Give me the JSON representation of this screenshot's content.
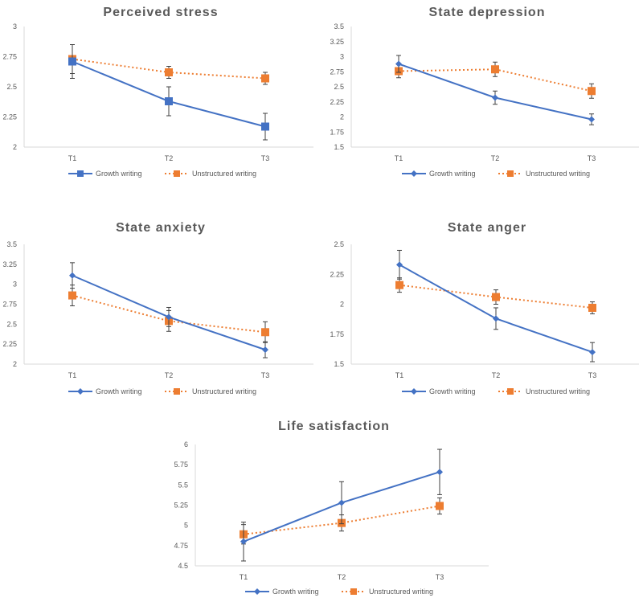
{
  "colors": {
    "growth": "#4472C4",
    "unstructured": "#ED7D31",
    "error": "#404040",
    "axis": "#D9D9D9"
  },
  "chart_data": [
    {
      "type": "line",
      "title": "Perceived stress",
      "categories": [
        "T1",
        "T2",
        "T3"
      ],
      "ylim": [
        2,
        3
      ],
      "yticks": [
        "2",
        "2.25",
        "2.5",
        "2.75",
        "3"
      ],
      "growth_marker": "square",
      "series": [
        {
          "name": "Growth writing",
          "values": [
            2.71,
            2.38,
            2.17
          ],
          "errors": [
            0.14,
            0.12,
            0.11
          ]
        },
        {
          "name": "Unstructured writing",
          "values": [
            2.73,
            2.62,
            2.57
          ],
          "errors": [
            0.12,
            0.05,
            0.05
          ]
        }
      ]
    },
    {
      "type": "line",
      "title": "State depression",
      "categories": [
        "T1",
        "T2",
        "T3"
      ],
      "ylim": [
        1.5,
        3.5
      ],
      "yticks": [
        "1.5",
        "1.75",
        "2",
        "2.25",
        "2.5",
        "2.75",
        "3",
        "3.25",
        "3.5"
      ],
      "growth_marker": "diamond",
      "series": [
        {
          "name": "Growth writing",
          "values": [
            2.88,
            2.32,
            1.96
          ],
          "errors": [
            0.14,
            0.11,
            0.09
          ]
        },
        {
          "name": "Unstructured writing",
          "values": [
            2.76,
            2.79,
            2.43
          ],
          "errors": [
            0.11,
            0.12,
            0.12
          ]
        }
      ]
    },
    {
      "type": "line",
      "title": "State anxiety",
      "categories": [
        "T1",
        "T2",
        "T3"
      ],
      "ylim": [
        2,
        3.5
      ],
      "yticks": [
        "2",
        "2.25",
        "2.5",
        "2.75",
        "3",
        "3.25",
        "3.5"
      ],
      "growth_marker": "diamond",
      "series": [
        {
          "name": "Growth writing",
          "values": [
            3.11,
            2.59,
            2.18
          ],
          "errors": [
            0.16,
            0.12,
            0.1
          ]
        },
        {
          "name": "Unstructured writing",
          "values": [
            2.86,
            2.54,
            2.4
          ],
          "errors": [
            0.13,
            0.13,
            0.13
          ]
        }
      ]
    },
    {
      "type": "line",
      "title": "State anger",
      "categories": [
        "T1",
        "T2",
        "T3"
      ],
      "ylim": [
        1.5,
        2.5
      ],
      "yticks": [
        "1.5",
        "1.75",
        "2",
        "2.25",
        "2.5"
      ],
      "growth_marker": "diamond",
      "series": [
        {
          "name": "Growth writing",
          "values": [
            2.33,
            1.88,
            1.6
          ],
          "errors": [
            0.12,
            0.09,
            0.08
          ]
        },
        {
          "name": "Unstructured writing",
          "values": [
            2.16,
            2.06,
            1.97
          ],
          "errors": [
            0.06,
            0.06,
            0.05
          ]
        }
      ]
    },
    {
      "type": "line",
      "title": "Life satisfaction",
      "categories": [
        "T1",
        "T2",
        "T3"
      ],
      "ylim": [
        4.5,
        6
      ],
      "yticks": [
        "4.5",
        "4.75",
        "5",
        "5.25",
        "5.5",
        "5.75",
        "6"
      ],
      "growth_marker": "diamond",
      "series": [
        {
          "name": "Growth writing",
          "values": [
            4.8,
            5.28,
            5.66
          ],
          "errors": [
            0.24,
            0.26,
            0.28
          ]
        },
        {
          "name": "Unstructured writing",
          "values": [
            4.89,
            5.03,
            5.24
          ],
          "errors": [
            0.12,
            0.1,
            0.1
          ]
        }
      ]
    }
  ]
}
